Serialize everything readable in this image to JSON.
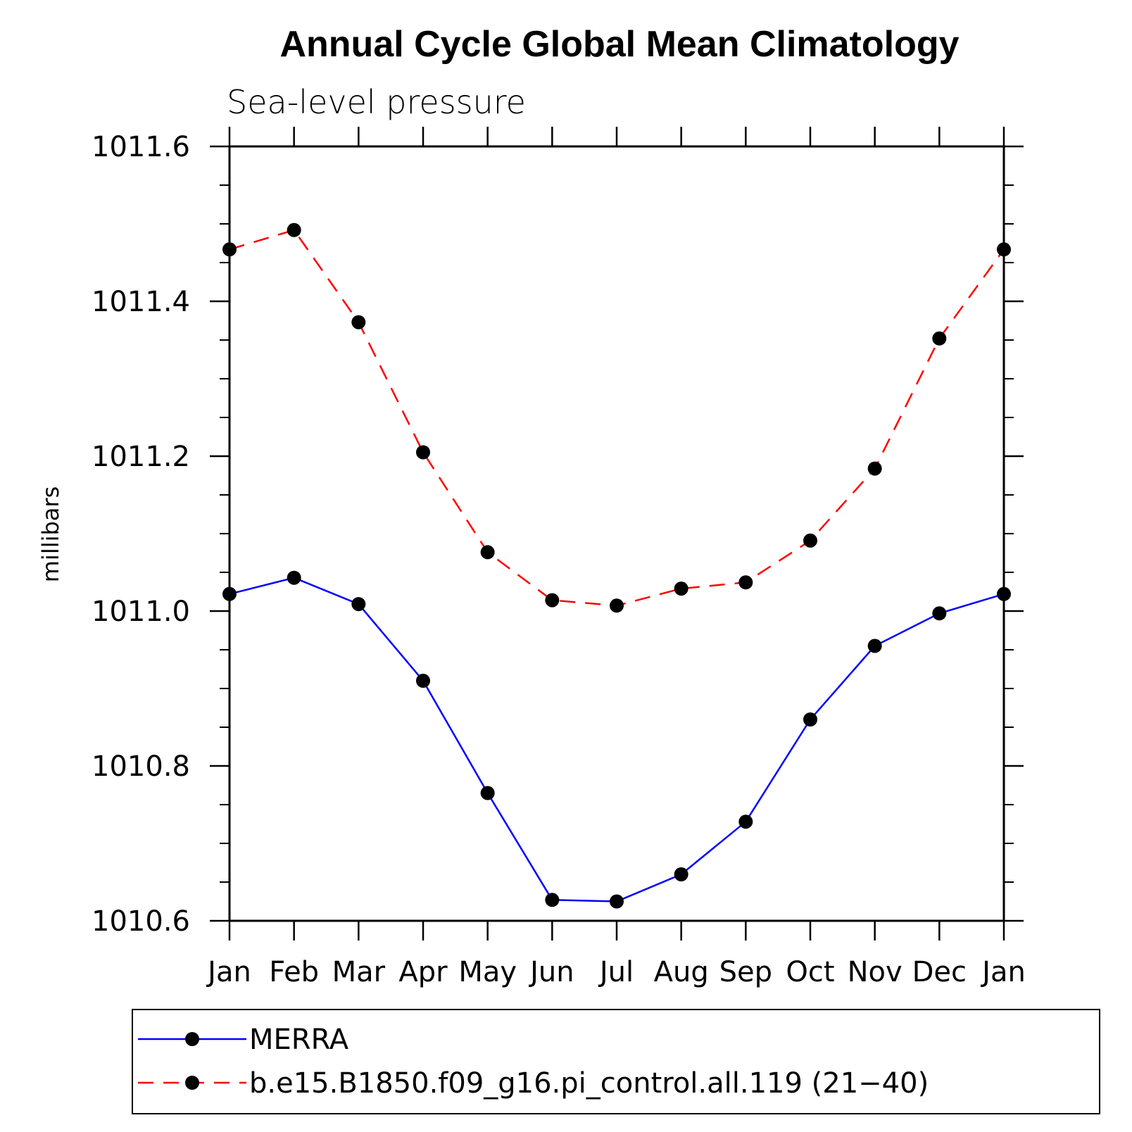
{
  "chart_data": {
    "type": "line",
    "title": "Annual Cycle Global Mean Climatology",
    "subtitle": "Sea-level pressure",
    "xlabel": "",
    "ylabel": "millibars",
    "categories": [
      "Jan",
      "Feb",
      "Mar",
      "Apr",
      "May",
      "Jun",
      "Jul",
      "Aug",
      "Sep",
      "Oct",
      "Nov",
      "Dec",
      "Jan"
    ],
    "yticks": [
      "1010.6",
      "1010.8",
      "1011.0",
      "1011.2",
      "1011.4",
      "1011.6"
    ],
    "ylim": [
      1010.6,
      1011.6
    ],
    "grid": false,
    "legend_position": "bottom",
    "series": [
      {
        "name": "MERRA",
        "color": "#0000ff",
        "line_style": "solid",
        "marker": "filled-circle",
        "values": [
          1011.022,
          1011.043,
          1011.009,
          1010.91,
          1010.765,
          1010.627,
          1010.625,
          1010.66,
          1010.728,
          1010.86,
          1010.955,
          1010.997,
          1011.022
        ]
      },
      {
        "name": "b.e15.B1850.f09_g16.pi_control.all.119 (21−40)",
        "color": "#ff0000",
        "line_style": "dashed",
        "marker": "filled-circle",
        "values": [
          1011.467,
          1011.492,
          1011.373,
          1011.205,
          1011.076,
          1011.014,
          1011.007,
          1011.029,
          1011.037,
          1011.091,
          1011.184,
          1011.352,
          1011.467
        ]
      }
    ]
  }
}
